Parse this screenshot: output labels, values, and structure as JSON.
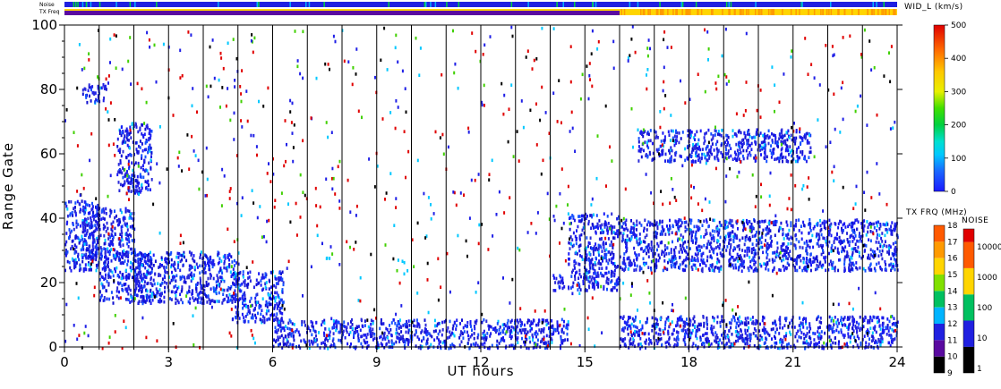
{
  "chart_data": {
    "type": "heatmap",
    "xlabel": "UT hours",
    "ylabel": "Range Gate",
    "xlim": [
      0,
      24
    ],
    "ylim": [
      0,
      100
    ],
    "xticks": [
      "0",
      "3",
      "6",
      "9",
      "12",
      "15",
      "18",
      "21",
      "24"
    ],
    "yticks": [
      "0",
      "20",
      "40",
      "60",
      "80",
      "100"
    ],
    "scan_marker_hours": [
      1,
      2,
      3,
      4,
      5,
      6,
      7,
      8,
      9,
      10,
      11,
      12,
      13,
      14,
      15,
      16,
      17,
      18,
      19,
      20,
      21,
      22,
      23
    ],
    "top_strips": {
      "noise_label": "Noise",
      "txfreq_label": "TX Freq",
      "txfreq_change_hour": 16
    },
    "scatter_regions": [
      {
        "x0": 0.0,
        "x1": 1.0,
        "y0": 24,
        "y1": 46
      },
      {
        "x0": 0.5,
        "x1": 2.0,
        "y0": 28,
        "y1": 44
      },
      {
        "x0": 0.5,
        "x1": 1.2,
        "y0": 76,
        "y1": 82
      },
      {
        "x0": 1.0,
        "x1": 2.5,
        "y0": 14,
        "y1": 30
      },
      {
        "x0": 1.5,
        "x1": 2.5,
        "y0": 48,
        "y1": 70
      },
      {
        "x0": 2.0,
        "x1": 5.0,
        "y0": 14,
        "y1": 30
      },
      {
        "x0": 4.8,
        "x1": 6.3,
        "y0": 8,
        "y1": 24
      },
      {
        "x0": 6.0,
        "x1": 14.5,
        "y0": 0,
        "y1": 9
      },
      {
        "x0": 14.0,
        "x1": 14.4,
        "y0": 18,
        "y1": 23
      },
      {
        "x0": 14.5,
        "x1": 16.0,
        "y0": 18,
        "y1": 42
      },
      {
        "x0": 16.0,
        "x1": 24.0,
        "y0": 24,
        "y1": 40
      },
      {
        "x0": 16.0,
        "x1": 24.0,
        "y0": 0,
        "y1": 10
      },
      {
        "x0": 16.5,
        "x1": 21.5,
        "y0": 58,
        "y1": 68
      }
    ],
    "colorbars": [
      {
        "title": "WID_L (km/s)",
        "ticks": [
          "0",
          "100",
          "200",
          "300",
          "400",
          "500"
        ],
        "range": [
          0,
          500
        ]
      },
      {
        "title": "TX FRQ (MHz)",
        "ticks": [
          "9",
          "10",
          "11",
          "12",
          "13",
          "14",
          "15",
          "16",
          "17",
          "18"
        ],
        "range": [
          9,
          18
        ]
      },
      {
        "title": "NOISE",
        "ticks": [
          "1",
          "10",
          "100",
          "1000",
          "10000"
        ],
        "scale": "log"
      }
    ],
    "colors": {
      "dominant_scatter": "#1f1fe6",
      "band_blue": "#1515ee",
      "tx_yellow": "#ffd500",
      "tx_purple": "#5a0aa0",
      "noise_blue": "#2020e0"
    }
  }
}
